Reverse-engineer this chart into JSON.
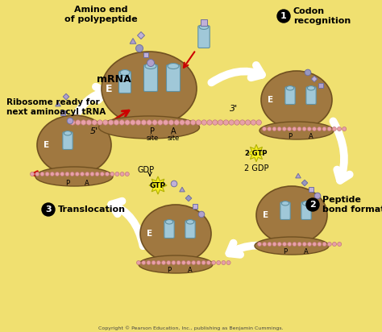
{
  "background_color": "#f0e070",
  "copyright_text": "Copyright © Pearson Education, Inc., publishing as Benjamin Cummings.",
  "ribosome_color": "#a07840",
  "mrna_pink": "#e8a0a8",
  "trna_color": "#a0c8d8",
  "peptide_colors": [
    "#b0a0cc",
    "#c0b0d8",
    "#9898c0"
  ],
  "label_e": "E",
  "label_mrna": "mRNA",
  "label_amino": "Amino end\nof polypeptide",
  "label_ready": "Ribosome ready for\nnext aminoacyl tRNA",
  "label_5p": "5'",
  "label_3p": "3'",
  "label_p": "P",
  "label_a": "A",
  "label_site": "site",
  "label_2gtp": "2 GTP",
  "label_2gdp": "2 GDP",
  "label_gtp": "GTP",
  "label_gdp": "GDP",
  "gtp_color": "#f8f020",
  "white": "#ffffff",
  "red": "#cc0000",
  "black": "#000000",
  "step1_label": "Codon\nrecognition",
  "step2_label": "Peptide\nbond formation",
  "step3_label": "Translocation"
}
